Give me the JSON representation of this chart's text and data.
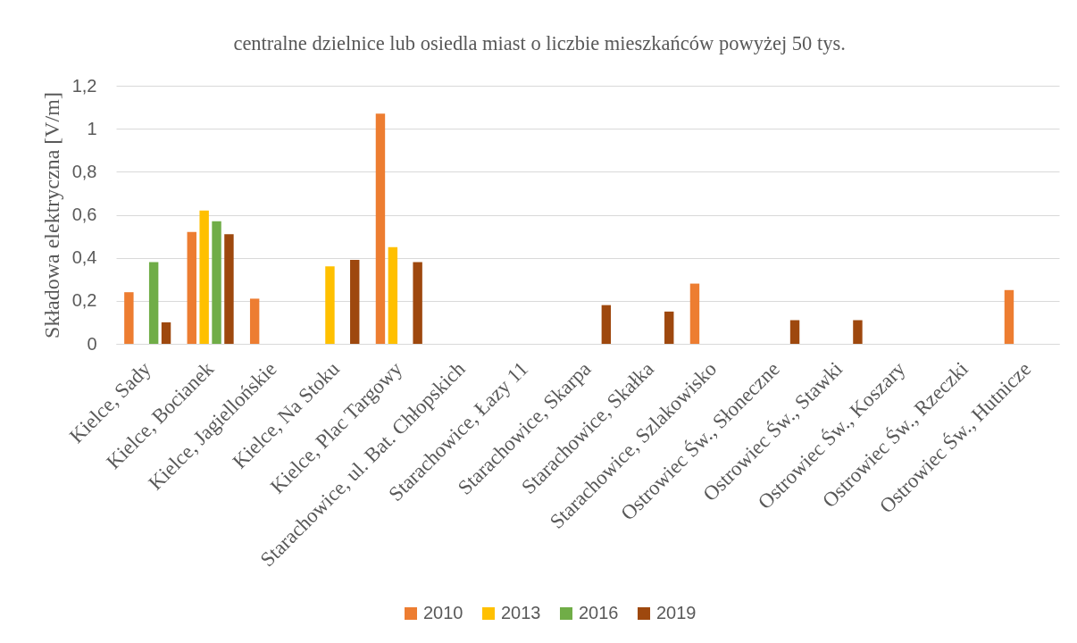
{
  "chart_data": {
    "type": "bar",
    "title": "centralne dzielnice lub osiedla miast o liczbie mieszkańców powyżej 50 tys.",
    "ylabel": "Składowa elektryczna [V/m]",
    "categories": [
      "Kielce, Sady",
      "Kielce, Bocianek",
      "Kielce, Jagiellońskie",
      "Kielce, Na Stoku",
      "Kielce, Plac Targowy",
      "Starachowice, ul. Bat. Chłopskich",
      "Starachowice, Łazy 11",
      "Starachowice, Skarpa",
      "Starachowice, Skałka",
      "Starachowice, Szlakowisko",
      "Ostrowiec Św., Słoneczne",
      "Ostrowiec Św., Stawki",
      "Ostrowiec Św., Koszary",
      "Ostrowiec Św., Rzeczki",
      "Ostrowiec Św., Hutnicze"
    ],
    "series": [
      {
        "name": "2010",
        "color": "#ed7d31",
        "values": [
          0.24,
          0.52,
          0.21,
          null,
          1.07,
          null,
          null,
          null,
          null,
          0.28,
          null,
          null,
          null,
          null,
          0.25
        ]
      },
      {
        "name": "2013",
        "color": "#ffc000",
        "values": [
          null,
          0.62,
          null,
          0.36,
          0.45,
          null,
          null,
          null,
          null,
          null,
          null,
          null,
          null,
          null,
          null
        ]
      },
      {
        "name": "2016",
        "color": "#70ad47",
        "values": [
          0.38,
          0.57,
          null,
          null,
          null,
          null,
          null,
          null,
          null,
          null,
          null,
          null,
          null,
          null,
          null
        ]
      },
      {
        "name": "2019",
        "color": "#9e480e",
        "values": [
          0.1,
          0.51,
          null,
          0.39,
          0.38,
          null,
          null,
          0.18,
          0.15,
          null,
          0.11,
          0.11,
          null,
          null,
          null
        ]
      }
    ],
    "ylim": [
      0,
      1.2
    ],
    "yticks": [
      {
        "value": 0,
        "label": "0"
      },
      {
        "value": 0.2,
        "label": "0,2"
      },
      {
        "value": 0.4,
        "label": "0,4"
      },
      {
        "value": 0.6,
        "label": "0,6"
      },
      {
        "value": 0.8,
        "label": "0,8"
      },
      {
        "value": 1,
        "label": "1"
      },
      {
        "value": 1.2,
        "label": "1,2"
      }
    ],
    "grid": "y",
    "legend": "bottom"
  }
}
